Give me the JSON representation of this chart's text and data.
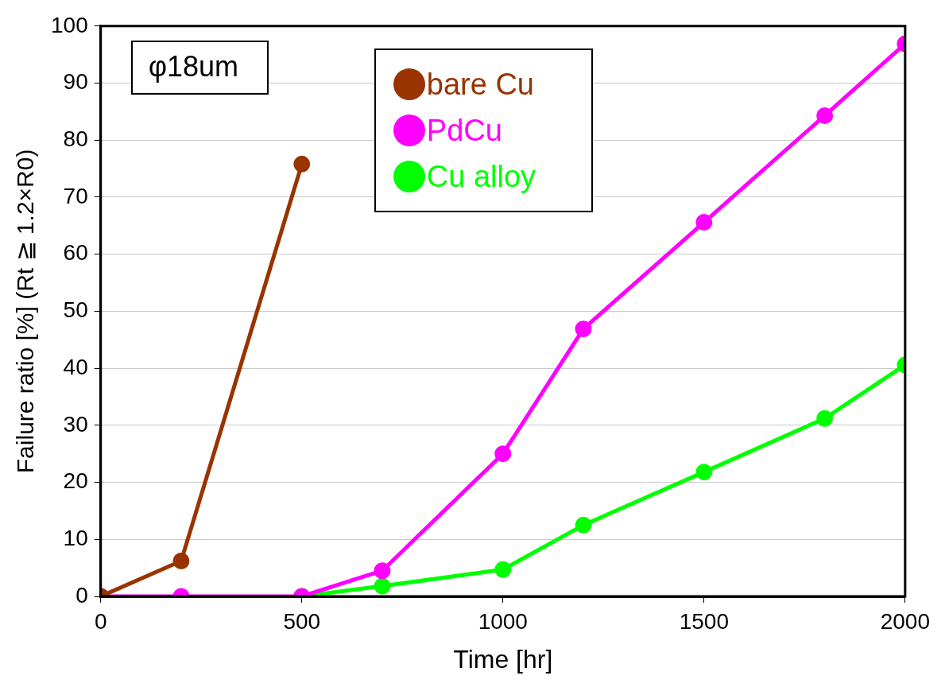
{
  "chart_data": {
    "type": "line",
    "xlabel": "Time [hr]",
    "ylabel": "Failure ratio [%] (Rt ≧ 1.2×R0)",
    "annotations": [
      "φ18um"
    ],
    "xlim": [
      0,
      2000
    ],
    "xticks": [
      0,
      500,
      1000,
      1500,
      2000
    ],
    "ylim": [
      0,
      100
    ],
    "yticks": [
      0,
      10,
      20,
      30,
      40,
      50,
      60,
      70,
      80,
      90,
      100
    ],
    "grid": "y",
    "legend": "top",
    "marker": "circle",
    "line_style": "solid",
    "series": [
      {
        "name": "bare Cu",
        "color": "#993300",
        "x": [
          0,
          200,
          500
        ],
        "values": [
          0,
          6.2,
          75.8
        ]
      },
      {
        "name": "PdCu",
        "color": "#ff00ff",
        "x": [
          0,
          200,
          500,
          700,
          1000,
          1200,
          1500,
          1800,
          2000
        ],
        "values": [
          0,
          0,
          0,
          4.5,
          25,
          46.9,
          65.6,
          84.3,
          96.9
        ]
      },
      {
        "name": "Cu alloy",
        "color": "#00ff00",
        "x": [
          500,
          700,
          1000,
          1200,
          1500,
          1800,
          2000
        ],
        "values": [
          0,
          1.8,
          4.7,
          12.5,
          21.8,
          31.2,
          40.6
        ]
      }
    ]
  }
}
